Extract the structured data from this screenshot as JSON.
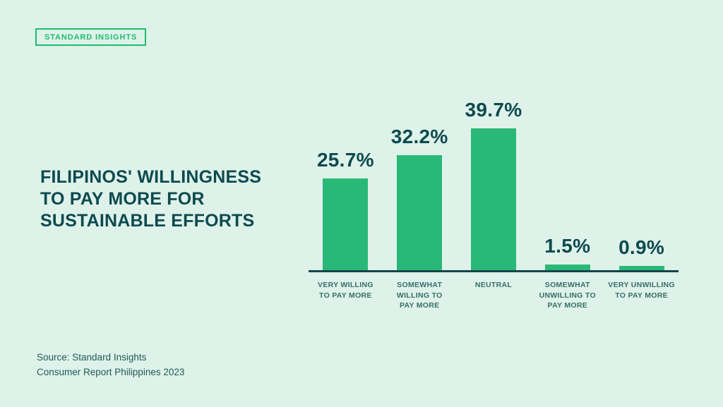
{
  "colors": {
    "background": "#def2ea",
    "headline_teal": "#0d4a4e",
    "category_label_teal": "#356e67",
    "bar_green": "#29b877",
    "badge_green": "#1dbd6e",
    "axis_teal": "#16444a"
  },
  "brand_badge": {
    "label": "STANDARD INSIGHTS"
  },
  "headline": {
    "text": "FILIPINOS' WILLINGNESS\nTO PAY MORE FOR\nSUSTAINABLE EFFORTS"
  },
  "source_note": {
    "text": "Source: Standard Insights\nConsumer Report Philippines 2023"
  },
  "chart_data": {
    "type": "bar",
    "title": "Filipinos' willingness to pay more for sustainable efforts",
    "categories": [
      "VERY WILLING\nTO PAY MORE",
      "SOMEWHAT\nWILLING TO\nPAY MORE",
      "NEUTRAL",
      "SOMEWHAT\nUNWILLING TO\nPAY MORE",
      "VERY UNWILLING\nTO PAY MORE"
    ],
    "values": [
      25.7,
      32.2,
      39.7,
      1.5,
      0.9
    ],
    "value_labels": [
      "25.7%",
      "32.2%",
      "39.7%",
      "1.5%",
      "0.9%"
    ],
    "bar_color": "#29b877",
    "xlabel": "",
    "ylabel": "",
    "ylim": [
      0,
      40
    ],
    "grid": false,
    "legend": false
  }
}
